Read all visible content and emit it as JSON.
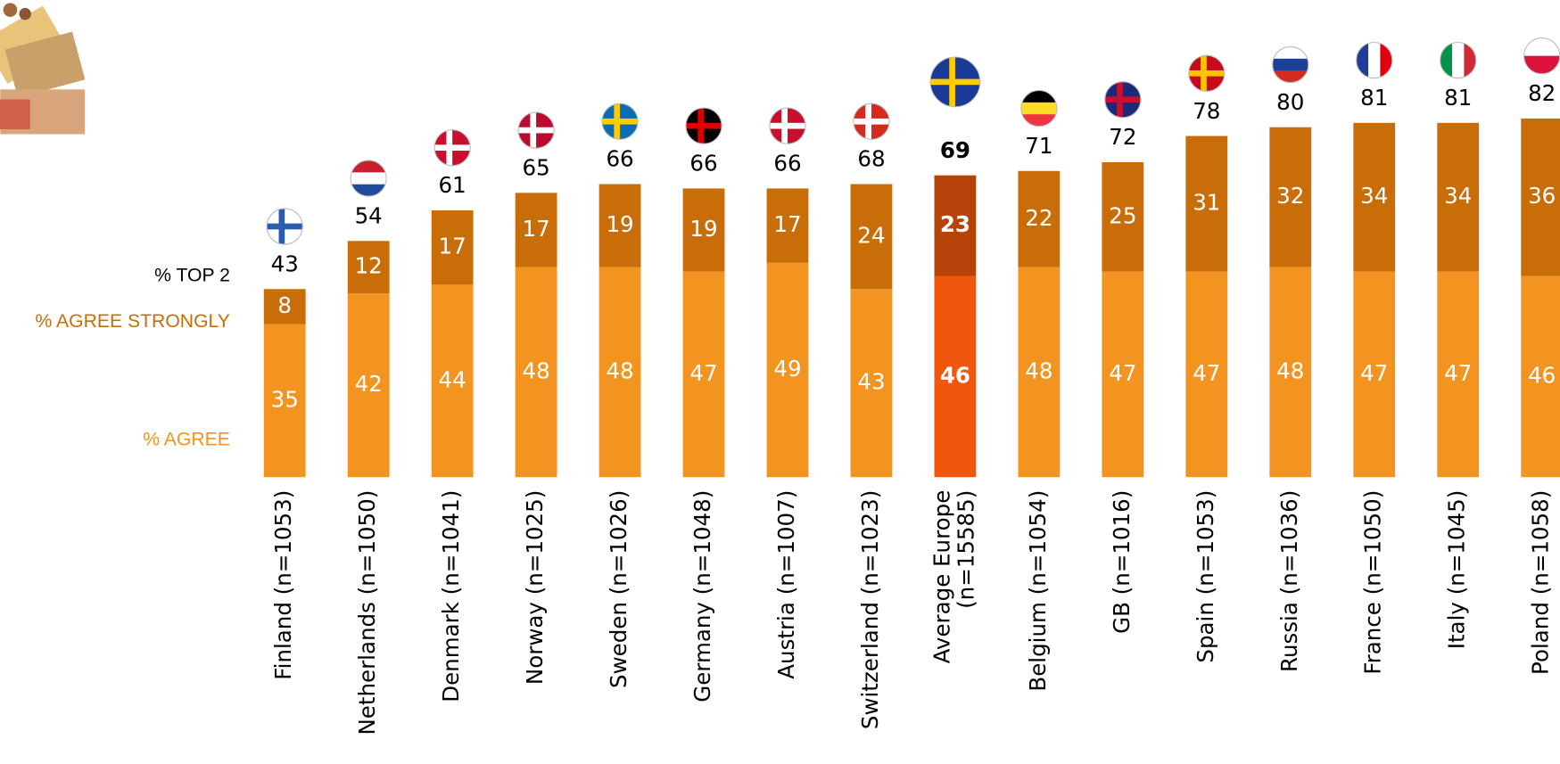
{
  "chart_data": {
    "type": "stacked_bar",
    "categories": [
      "Finland (n=1053)",
      "Netherlands (n=1050)",
      "Denmark (n=1041)",
      "Norway (n=1025)",
      "Sweden (n=1026)",
      "Germany (n=1048)",
      "Austria (n=1007)",
      "Switzerland (n=1023)",
      "Average Europe (n=15585)",
      "Belgium (n=1054)",
      "GB (n=1016)",
      "Spain (n=1053)",
      "Russia (n=1036)",
      "France (n=1050)",
      "Italy (n=1045)",
      "Poland (n=1058)"
    ],
    "series": [
      {
        "name": "% AGREE",
        "color": "#f39320",
        "highlight_color": "#f0560c",
        "values": [
          35,
          42,
          44,
          48,
          48,
          47,
          49,
          43,
          46,
          48,
          47,
          47,
          48,
          47,
          47,
          46
        ]
      },
      {
        "name": "% AGREE STRONGLY",
        "color": "#c96d08",
        "highlight_color": "#b5430a",
        "values": [
          8,
          12,
          17,
          17,
          19,
          19,
          17,
          24,
          23,
          22,
          25,
          31,
          32,
          34,
          34,
          36
        ]
      }
    ],
    "totals": {
      "name": "% TOP 2",
      "values": [
        43,
        54,
        61,
        65,
        66,
        66,
        66,
        68,
        69,
        71,
        72,
        78,
        80,
        81,
        81,
        82
      ]
    },
    "highlight": 8,
    "ylim": [
      0,
      100
    ]
  }
}
